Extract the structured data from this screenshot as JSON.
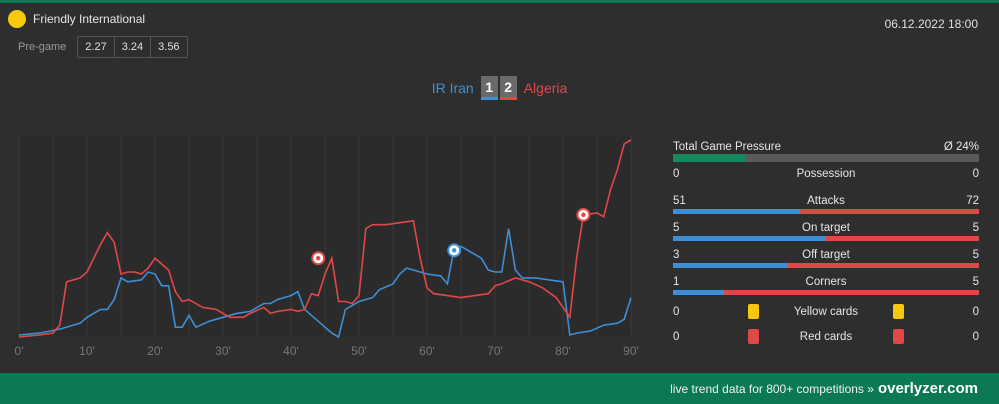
{
  "match": {
    "competition": "Friendly International",
    "datetime": "06.12.2022 18:00",
    "pregame_label": "Pre-game",
    "odds": [
      "2.27",
      "3.24",
      "3.56"
    ],
    "home_team": "IR Iran",
    "away_team": "Algeria",
    "home_score": "1",
    "away_score": "2"
  },
  "colors": {
    "home": "#3d8fd6",
    "away": "#e04848",
    "accent": "#0b7a52",
    "pressure": "#14895e",
    "yellow": "#f6c90e"
  },
  "stats": {
    "pressure": {
      "label": "Total Game Pressure",
      "value": "Ø 24%",
      "fraction": 0.24
    },
    "possession": {
      "label": "Possession",
      "home": "0",
      "away": "0"
    },
    "attacks": {
      "label": "Attacks",
      "home": "51",
      "away": "72"
    },
    "on_target": {
      "label": "On target",
      "home": "5",
      "away": "5"
    },
    "off_target": {
      "label": "Off target",
      "home": "3",
      "away": "5"
    },
    "corners": {
      "label": "Corners",
      "home": "1",
      "away": "5"
    },
    "yellow_cards": {
      "label": "Yellow cards",
      "home": "0",
      "away": "0"
    },
    "red_cards": {
      "label": "Red cards",
      "home": "0",
      "away": "0"
    }
  },
  "footer": {
    "text": "live trend data for 800+ competitions »",
    "brand": "overlyzer.com"
  },
  "chart_data": {
    "type": "line",
    "xlabel": "",
    "ylabel": "",
    "xlim": [
      0,
      90
    ],
    "x_ticks": [
      "0'",
      "10'",
      "20'",
      "30'",
      "40'",
      "50'",
      "60'",
      "70'",
      "80'",
      "90'"
    ],
    "series": [
      {
        "name": "IR Iran",
        "color": "#3d8fd6",
        "points": [
          [
            0,
            1
          ],
          [
            3,
            2
          ],
          [
            6,
            4
          ],
          [
            9,
            7
          ],
          [
            10,
            10
          ],
          [
            12,
            14
          ],
          [
            13,
            14
          ],
          [
            14,
            19
          ],
          [
            15,
            30
          ],
          [
            16,
            28
          ],
          [
            18,
            29
          ],
          [
            19,
            33
          ],
          [
            20,
            32
          ],
          [
            21,
            26
          ],
          [
            22,
            26
          ],
          [
            23,
            5
          ],
          [
            24,
            5
          ],
          [
            25,
            11
          ],
          [
            26,
            5
          ],
          [
            28,
            8
          ],
          [
            30,
            10
          ],
          [
            32,
            12
          ],
          [
            34,
            13
          ],
          [
            36,
            17
          ],
          [
            37,
            17
          ],
          [
            38,
            19
          ],
          [
            40,
            21
          ],
          [
            41,
            23
          ],
          [
            42,
            14
          ],
          [
            43,
            11
          ],
          [
            44,
            8
          ],
          [
            46,
            2
          ],
          [
            47,
            0
          ],
          [
            48,
            14
          ],
          [
            50,
            18
          ],
          [
            52,
            20
          ],
          [
            53,
            24
          ],
          [
            55,
            27
          ],
          [
            56,
            32
          ],
          [
            57,
            35
          ],
          [
            58,
            34
          ],
          [
            60,
            32
          ],
          [
            62,
            31
          ],
          [
            63,
            27
          ],
          [
            64,
            45
          ],
          [
            65,
            46
          ],
          [
            66,
            44
          ],
          [
            68,
            40
          ],
          [
            69,
            34
          ],
          [
            70,
            33
          ],
          [
            71,
            33
          ],
          [
            72,
            55
          ],
          [
            73,
            34
          ],
          [
            74,
            30
          ],
          [
            75,
            30
          ],
          [
            76,
            30
          ],
          [
            78,
            29
          ],
          [
            80,
            28
          ],
          [
            81,
            1
          ],
          [
            82,
            2
          ],
          [
            84,
            3
          ],
          [
            86,
            6
          ],
          [
            88,
            7
          ],
          [
            89,
            9
          ],
          [
            90,
            20
          ]
        ]
      },
      {
        "name": "Algeria",
        "color": "#e04848",
        "points": [
          [
            0,
            0
          ],
          [
            3,
            1
          ],
          [
            5,
            2
          ],
          [
            6,
            6
          ],
          [
            7,
            28
          ],
          [
            8,
            29
          ],
          [
            9,
            30
          ],
          [
            10,
            33
          ],
          [
            11,
            40
          ],
          [
            12,
            47
          ],
          [
            13,
            53
          ],
          [
            14,
            48
          ],
          [
            15,
            32
          ],
          [
            16,
            33
          ],
          [
            17,
            33
          ],
          [
            18,
            32
          ],
          [
            19,
            35
          ],
          [
            20,
            40
          ],
          [
            21,
            37
          ],
          [
            22,
            34
          ],
          [
            23,
            23
          ],
          [
            24,
            18
          ],
          [
            25,
            19
          ],
          [
            27,
            15
          ],
          [
            29,
            14
          ],
          [
            31,
            10
          ],
          [
            33,
            10
          ],
          [
            34,
            12
          ],
          [
            36,
            15
          ],
          [
            37,
            12
          ],
          [
            38,
            13
          ],
          [
            40,
            14
          ],
          [
            41,
            13
          ],
          [
            42,
            14
          ],
          [
            43,
            22
          ],
          [
            44,
            21
          ],
          [
            45,
            32
          ],
          [
            46,
            40
          ],
          [
            47,
            18
          ],
          [
            48,
            18
          ],
          [
            49,
            17
          ],
          [
            50,
            21
          ],
          [
            51,
            55
          ],
          [
            52,
            57
          ],
          [
            54,
            57
          ],
          [
            56,
            58
          ],
          [
            58,
            59
          ],
          [
            59,
            40
          ],
          [
            60,
            25
          ],
          [
            61,
            22
          ],
          [
            63,
            21
          ],
          [
            65,
            20
          ],
          [
            67,
            21
          ],
          [
            69,
            22
          ],
          [
            70,
            26
          ],
          [
            71,
            27
          ],
          [
            73,
            30
          ],
          [
            75,
            28
          ],
          [
            77,
            25
          ],
          [
            79,
            20
          ],
          [
            80,
            15
          ],
          [
            81,
            10
          ],
          [
            82,
            40
          ],
          [
            83,
            62
          ],
          [
            85,
            63
          ],
          [
            86,
            61
          ],
          [
            87,
            75
          ],
          [
            88,
            85
          ],
          [
            89,
            98
          ],
          [
            90,
            100
          ]
        ]
      }
    ],
    "goals": [
      {
        "team": "away",
        "minute": 44,
        "level": 40
      },
      {
        "team": "home",
        "minute": 64,
        "level": 44
      },
      {
        "team": "away",
        "minute": 83,
        "level": 62
      }
    ]
  }
}
